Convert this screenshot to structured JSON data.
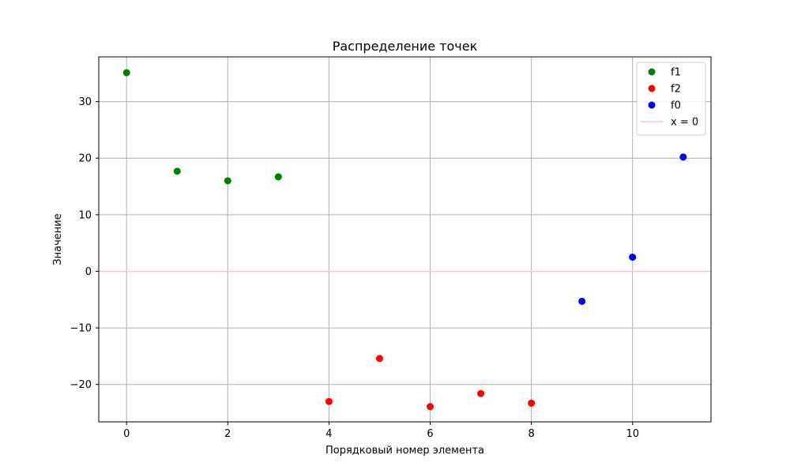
{
  "chart_data": {
    "type": "scatter",
    "title": "Распределение точек",
    "xlabel": "Порядковый номер элемента",
    "ylabel": "Значение",
    "xlim": [
      -0.55,
      11.55
    ],
    "ylim": [
      -26.6,
      37.9
    ],
    "x_ticks": [
      0,
      2,
      4,
      6,
      8,
      10
    ],
    "y_ticks": [
      -20,
      -10,
      0,
      10,
      20,
      30
    ],
    "x_tick_labels": [
      "0",
      "2",
      "4",
      "6",
      "8",
      "10"
    ],
    "y_tick_labels": [
      "−20",
      "−10",
      "0",
      "10",
      "20",
      "30"
    ],
    "grid": true,
    "legend_position": "top-right",
    "series": [
      {
        "name": "f1",
        "color": "#008000",
        "x": [
          0,
          1,
          2,
          3
        ],
        "y": [
          35.1,
          17.7,
          16.0,
          16.7
        ]
      },
      {
        "name": "f2",
        "color": "#ff0000",
        "x": [
          4,
          5,
          6,
          7,
          8
        ],
        "y": [
          -23.0,
          -15.4,
          -23.9,
          -21.6,
          -23.3
        ]
      },
      {
        "name": "f0",
        "color": "#0000ff",
        "x": [
          9,
          10,
          11
        ],
        "y": [
          -5.3,
          2.5,
          20.2
        ]
      }
    ],
    "reference_lines": [
      {
        "name": "x = 0",
        "orientation": "horizontal",
        "value": 0,
        "color": "#ffc0cb"
      }
    ]
  }
}
